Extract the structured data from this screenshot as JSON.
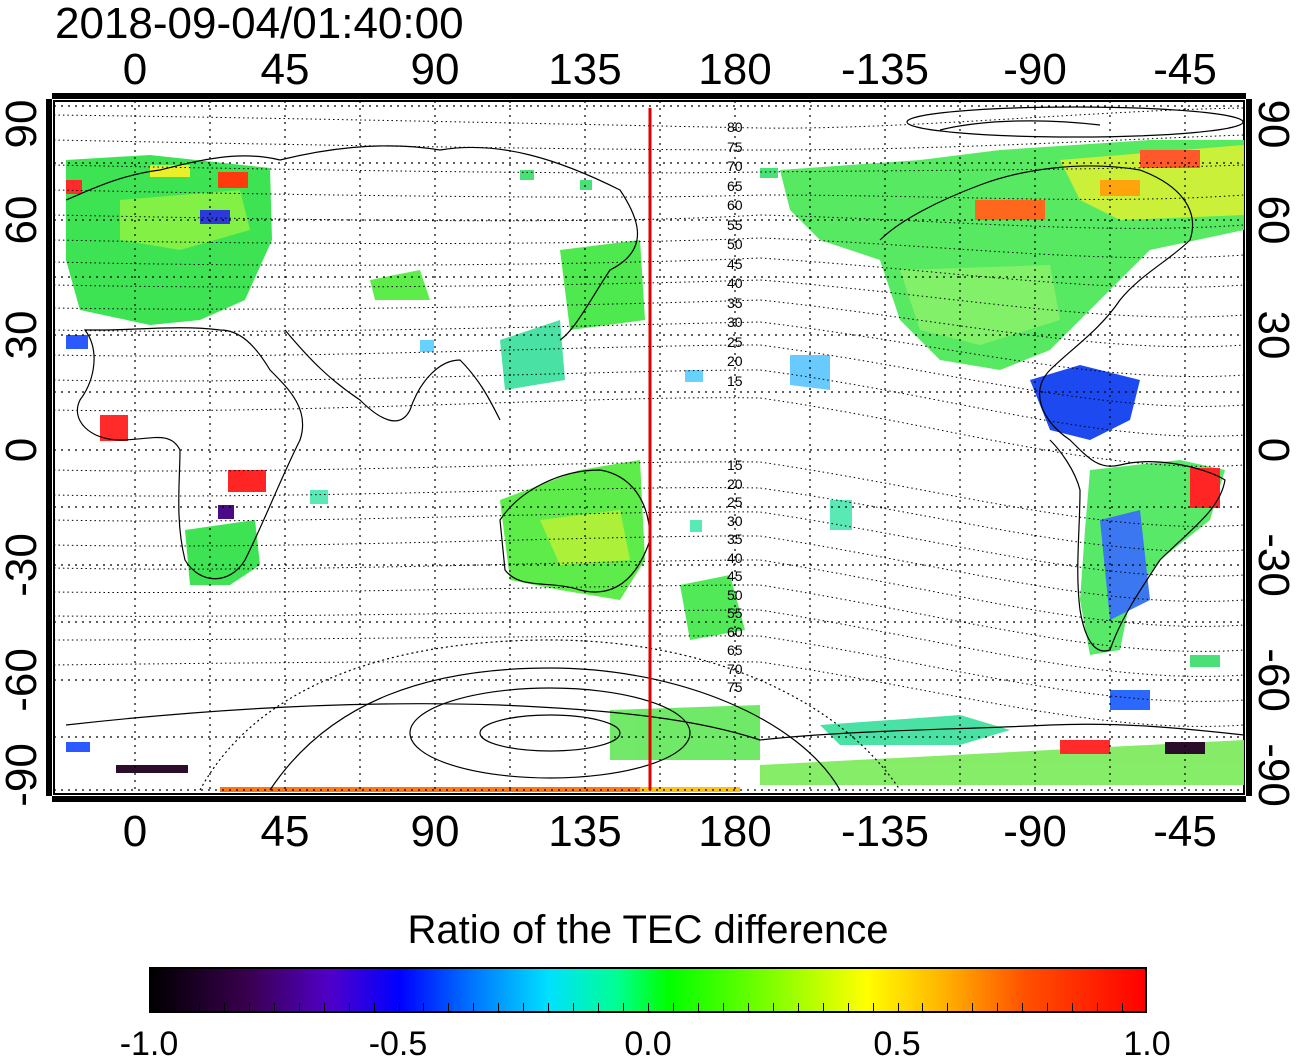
{
  "title": "2018-09-04/01:40:00",
  "axes": {
    "top_lon_labels": [
      "0",
      "45",
      "90",
      "135",
      "180",
      "-135",
      "-90",
      "-45"
    ],
    "bottom_lon_labels": [
      "0",
      "45",
      "90",
      "135",
      "180",
      "-135",
      "-90",
      "-45"
    ],
    "left_lat_labels": [
      "90",
      "60",
      "30",
      "0",
      "-30",
      "-60",
      "-90"
    ],
    "right_lat_labels": [
      "90",
      "60",
      "30",
      "0",
      "-30",
      "-60",
      "-90"
    ]
  },
  "terminator_longitude": 155,
  "contour_labels_north": [
    "80",
    "75",
    "70",
    "65",
    "60",
    "55",
    "50",
    "45",
    "40",
    "35",
    "30",
    "25",
    "20",
    "15"
  ],
  "contour_labels_south": [
    "15",
    "20",
    "25",
    "30",
    "35",
    "40",
    "45",
    "50",
    "55",
    "60",
    "65",
    "70",
    "75"
  ],
  "colorbar": {
    "title": "Ratio of the TEC difference",
    "tick_labels": [
      "-1.0",
      "-0.5",
      "0.0",
      "0.5",
      "1.0"
    ],
    "min": -1.0,
    "max": 1.0
  },
  "colors": {
    "terminator": "#e00000",
    "frame": "#000000"
  }
}
